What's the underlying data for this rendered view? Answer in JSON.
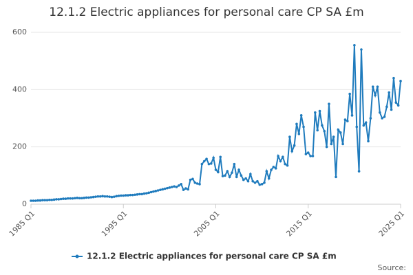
{
  "chart_data": {
    "type": "line",
    "title": "12.1.2 Electric appliances for personal care CP SA £m",
    "source": "Source:",
    "categories": [
      "1985 Q1",
      null,
      null,
      null,
      null,
      null,
      null,
      null,
      null,
      null,
      null,
      null,
      null,
      null,
      null,
      null,
      null,
      null,
      null,
      null,
      null,
      null,
      null,
      null,
      null,
      null,
      null,
      null,
      null,
      null,
      null,
      null,
      null,
      null,
      null,
      null,
      null,
      null,
      null,
      null,
      "1995 Q1",
      null,
      null,
      null,
      null,
      null,
      null,
      null,
      null,
      null,
      null,
      null,
      null,
      null,
      null,
      null,
      null,
      null,
      null,
      null,
      null,
      null,
      null,
      null,
      null,
      null,
      null,
      null,
      null,
      null,
      null,
      null,
      null,
      null,
      null,
      null,
      null,
      null,
      null,
      null,
      "2005 Q1",
      null,
      null,
      null,
      null,
      null,
      null,
      null,
      null,
      null,
      null,
      null,
      null,
      null,
      null,
      null,
      null,
      null,
      null,
      null,
      null,
      null,
      null,
      null,
      null,
      null,
      null,
      null,
      null,
      null,
      null,
      null,
      null,
      null,
      null,
      null,
      null,
      null,
      null,
      null,
      "2015 Q1",
      null,
      null,
      null,
      null,
      null,
      null,
      null,
      null,
      null,
      null,
      null,
      null,
      null,
      null,
      null,
      null,
      null,
      null,
      null,
      null,
      null,
      null,
      null,
      null,
      null,
      null,
      null,
      null,
      null,
      null,
      null,
      null,
      null,
      null,
      null,
      null,
      null,
      null,
      null,
      "2025 Q1"
    ],
    "series": [
      {
        "name": "12.1.2 Electric appliances for personal care CP SA £m",
        "color": "#1f7bbd",
        "values": [
          12,
          12,
          12,
          13,
          13,
          14,
          14,
          14,
          15,
          15,
          16,
          17,
          17,
          18,
          19,
          19,
          20,
          20,
          20,
          21,
          22,
          21,
          21,
          22,
          23,
          23,
          24,
          25,
          26,
          27,
          27,
          28,
          27,
          27,
          26,
          25,
          26,
          28,
          29,
          30,
          30,
          31,
          31,
          32,
          32,
          33,
          34,
          35,
          35,
          37,
          38,
          40,
          42,
          44,
          46,
          48,
          50,
          52,
          54,
          56,
          58,
          60,
          62,
          60,
          65,
          70,
          50,
          55,
          52,
          85,
          88,
          75,
          72,
          70,
          140,
          150,
          158,
          140,
          142,
          162,
          120,
          112,
          165,
          98,
          100,
          115,
          95,
          110,
          140,
          95,
          120,
          100,
          85,
          90,
          80,
          105,
          80,
          75,
          80,
          68,
          70,
          75,
          115,
          90,
          120,
          130,
          125,
          168,
          150,
          165,
          140,
          135,
          235,
          185,
          205,
          280,
          245,
          310,
          270,
          175,
          180,
          168,
          168,
          320,
          258,
          325,
          275,
          255,
          200,
          350,
          210,
          235,
          95,
          260,
          250,
          210,
          295,
          290,
          385,
          310,
          555,
          270,
          115,
          540,
          275,
          285,
          220,
          300,
          410,
          380,
          410,
          320,
          300,
          305,
          340,
          390,
          330,
          440,
          355,
          345,
          430
        ]
      }
    ],
    "ylim": [
      0,
      600
    ],
    "yticks": [
      0,
      200,
      400,
      600
    ],
    "grid": true,
    "legend": "bottom"
  }
}
